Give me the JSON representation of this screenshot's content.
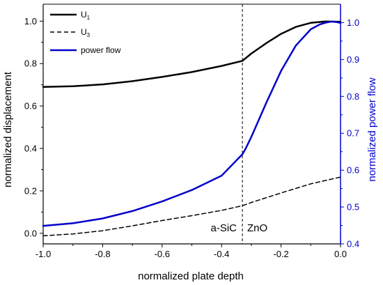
{
  "chart_data": {
    "type": "line",
    "xlabel": "normalized plate depth",
    "ylabel": "normalized displacement",
    "y2label": "normalized power flow",
    "xlim": [
      -1.0,
      0.0
    ],
    "ylim": [
      -0.05,
      1.08
    ],
    "y2lim": [
      0.4,
      1.05
    ],
    "x_ticks": [
      -1.0,
      -0.8,
      -0.6,
      -0.4,
      -0.2,
      0.0
    ],
    "x_tick_labels": [
      "-1.0",
      "-0.8",
      "-0.6",
      "-0.4",
      "-0.2",
      "0.0"
    ],
    "y_ticks": [
      0.0,
      0.2,
      0.4,
      0.6,
      0.8,
      1.0
    ],
    "y_tick_labels": [
      "0.0",
      "0.2",
      "0.4",
      "0.6",
      "0.8",
      "1.0"
    ],
    "y2_ticks": [
      0.4,
      0.5,
      0.6,
      0.7,
      0.8,
      0.9,
      1.0
    ],
    "y2_tick_labels": [
      "0.4",
      "0.5",
      "0.6",
      "0.7",
      "0.8",
      "0.9",
      "1.0"
    ],
    "grid": false,
    "legend_position": "top-left",
    "interface_x": -0.33,
    "region_labels": [
      "a-SiC",
      "ZnO"
    ],
    "legend": {
      "u1": {
        "base": "U",
        "sub": "1"
      },
      "u3": {
        "base": "U",
        "sub": "3"
      },
      "power": "power flow"
    },
    "series": [
      {
        "id": "u1",
        "color": "#000000",
        "dashed": false,
        "axis": "left",
        "x": [
          -1.0,
          -0.9,
          -0.8,
          -0.7,
          -0.6,
          -0.5,
          -0.4,
          -0.33,
          -0.3,
          -0.25,
          -0.2,
          -0.15,
          -0.1,
          -0.05,
          0.0
        ],
        "y": [
          0.69,
          0.693,
          0.702,
          0.717,
          0.737,
          0.76,
          0.789,
          0.813,
          0.847,
          0.896,
          0.94,
          0.973,
          0.992,
          0.999,
          0.997
        ]
      },
      {
        "id": "u3",
        "color": "#000000",
        "dashed": true,
        "axis": "left",
        "x": [
          -1.0,
          -0.9,
          -0.8,
          -0.7,
          -0.6,
          -0.5,
          -0.4,
          -0.33,
          -0.3,
          -0.2,
          -0.1,
          0.0
        ],
        "y": [
          -0.012,
          -0.003,
          0.012,
          0.035,
          0.06,
          0.083,
          0.108,
          0.13,
          0.145,
          0.19,
          0.233,
          0.265
        ]
      },
      {
        "id": "power",
        "color": "#0000cc",
        "dashed": false,
        "axis": "right",
        "x": [
          -1.0,
          -0.9,
          -0.8,
          -0.7,
          -0.6,
          -0.5,
          -0.4,
          -0.33,
          -0.32,
          -0.3,
          -0.25,
          -0.2,
          -0.15,
          -0.1,
          -0.07,
          -0.05,
          -0.03,
          -0.01,
          0.0
        ],
        "y": [
          0.449,
          0.456,
          0.469,
          0.489,
          0.515,
          0.546,
          0.585,
          0.643,
          0.657,
          0.69,
          0.782,
          0.869,
          0.938,
          0.982,
          0.995,
          1.0,
          1.003,
          1.001,
          0.999
        ]
      }
    ]
  }
}
